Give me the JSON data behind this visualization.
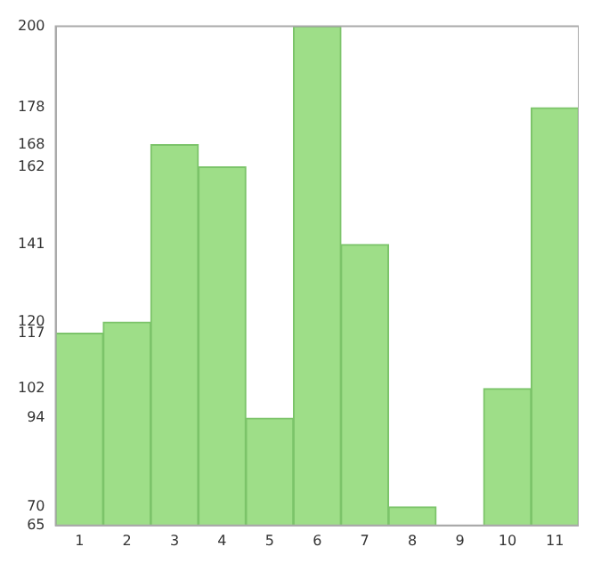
{
  "chart_data": {
    "type": "bar",
    "categories": [
      "1",
      "2",
      "3",
      "4",
      "5",
      "6",
      "7",
      "8",
      "9",
      "10",
      "11"
    ],
    "values": [
      117,
      120,
      168,
      162,
      94,
      200,
      141,
      70,
      65,
      102,
      178
    ],
    "color": "#9ede88",
    "ylim": [
      65,
      200
    ],
    "yticks": [
      65,
      70,
      94,
      102,
      117,
      120,
      141,
      162,
      168,
      178,
      200
    ],
    "grid": false,
    "legend": false
  }
}
